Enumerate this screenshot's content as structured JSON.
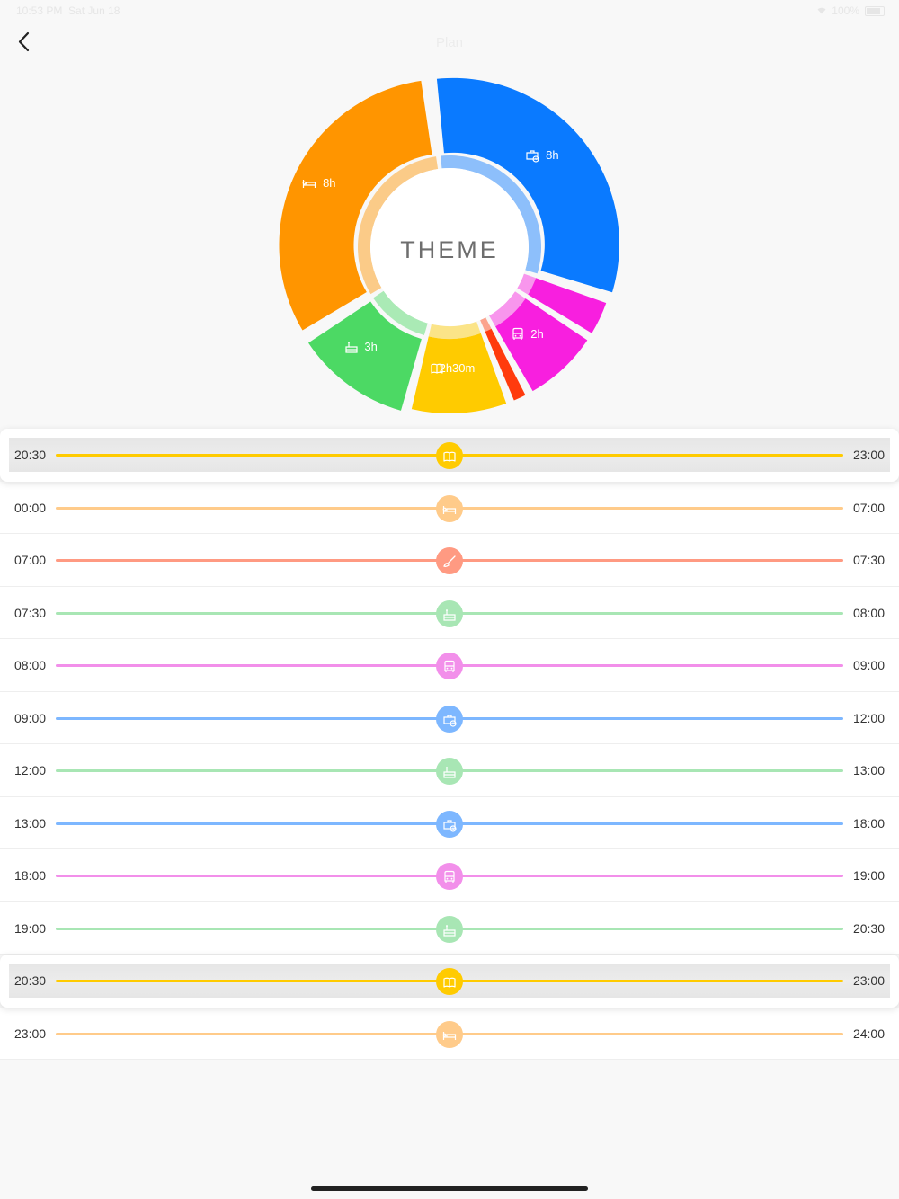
{
  "status": {
    "time": "10:53 PM",
    "date": "Sat Jun 18",
    "battery": "100%"
  },
  "nav": {
    "title": "Plan"
  },
  "donut": {
    "center_text": "THEME",
    "segments": [
      {
        "label": "8h",
        "icon": "work-icon",
        "color": "#0A7AFF",
        "hours": 8
      },
      {
        "label": "",
        "icon": "",
        "color": "#F81FDF",
        "hours": 1
      },
      {
        "label": "2h",
        "icon": "bus-icon",
        "color": "#F81FDF",
        "hours": 2
      },
      {
        "label": "",
        "icon": "",
        "color": "#FF3B0D",
        "hours": 0.5
      },
      {
        "label": "2h30m",
        "icon": "book-icon",
        "color": "#FFCB00",
        "hours": 2.5
      },
      {
        "label": "3h",
        "icon": "meal-icon",
        "color": "#4CD964",
        "hours": 3
      },
      {
        "label": "8h",
        "icon": "bed-icon",
        "color": "#FF9500",
        "hours": 8
      }
    ]
  },
  "rows": [
    {
      "start": "20:30",
      "end": "23:00",
      "color": "#FFCB00",
      "icon": "book-icon",
      "active": true
    },
    {
      "start": "00:00",
      "end": "07:00",
      "color": "#FFCB8A",
      "icon": "bed-icon",
      "active": false
    },
    {
      "start": "07:00",
      "end": "07:30",
      "color": "#FF9A82",
      "icon": "brush-icon",
      "active": false
    },
    {
      "start": "07:30",
      "end": "08:00",
      "color": "#A8E6B4",
      "icon": "meal-icon",
      "active": false
    },
    {
      "start": "08:00",
      "end": "09:00",
      "color": "#F28FEA",
      "icon": "bus-icon",
      "active": false
    },
    {
      "start": "09:00",
      "end": "12:00",
      "color": "#7DB7FF",
      "icon": "work-icon",
      "active": false
    },
    {
      "start": "12:00",
      "end": "13:00",
      "color": "#A8E6B4",
      "icon": "meal-icon",
      "active": false
    },
    {
      "start": "13:00",
      "end": "18:00",
      "color": "#7DB7FF",
      "icon": "work-icon",
      "active": false
    },
    {
      "start": "18:00",
      "end": "19:00",
      "color": "#F28FEA",
      "icon": "bus-icon",
      "active": false
    },
    {
      "start": "19:00",
      "end": "20:30",
      "color": "#A8E6B4",
      "icon": "meal-icon",
      "active": false
    },
    {
      "start": "20:30",
      "end": "23:00",
      "color": "#FFCB00",
      "icon": "book-icon",
      "active": true
    },
    {
      "start": "23:00",
      "end": "24:00",
      "color": "#FFCB8A",
      "icon": "bed-icon",
      "active": false
    }
  ]
}
